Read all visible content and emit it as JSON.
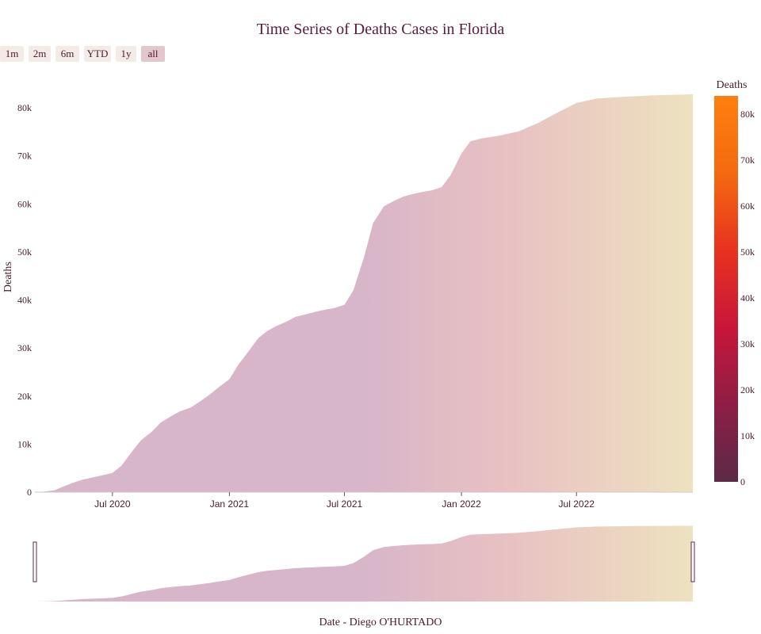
{
  "title": "Time Series of Deaths Cases in Florida",
  "range_buttons": [
    {
      "label": "1m",
      "active": false
    },
    {
      "label": "2m",
      "active": false
    },
    {
      "label": "6m",
      "active": false
    },
    {
      "label": "YTD",
      "active": false
    },
    {
      "label": "1y",
      "active": false
    },
    {
      "label": "all",
      "active": true
    }
  ],
  "colors": {
    "area_start": "#d8b6c9",
    "area_mid": "#e8c1c2",
    "area_end": "#ede2bf",
    "colorscale": [
      "#5c2a46",
      "#8e1e45",
      "#c8163a",
      "#e8321f",
      "#f46a10",
      "#fe7f0f"
    ]
  },
  "chart_data": {
    "type": "area",
    "xlabel": "Date - Diego O'HURTADO",
    "ylabel": "Deaths",
    "colorbar_title": "Deaths",
    "x": [
      "2020-03-01",
      "2020-03-15",
      "2020-04-01",
      "2020-04-15",
      "2020-05-01",
      "2020-05-15",
      "2020-06-01",
      "2020-06-15",
      "2020-07-01",
      "2020-07-15",
      "2020-08-01",
      "2020-08-15",
      "2020-09-01",
      "2020-09-15",
      "2020-10-01",
      "2020-10-15",
      "2020-11-01",
      "2020-11-15",
      "2020-12-01",
      "2020-12-15",
      "2021-01-01",
      "2021-01-15",
      "2021-02-01",
      "2021-02-15",
      "2021-03-01",
      "2021-03-15",
      "2021-04-01",
      "2021-04-15",
      "2021-05-01",
      "2021-05-15",
      "2021-06-01",
      "2021-06-15",
      "2021-07-01",
      "2021-07-15",
      "2021-08-01",
      "2021-08-15",
      "2021-09-01",
      "2021-09-15",
      "2021-10-01",
      "2021-10-15",
      "2021-11-01",
      "2021-11-15",
      "2021-12-01",
      "2021-12-15",
      "2022-01-01",
      "2022-01-15",
      "2022-02-01",
      "2022-02-15",
      "2022-03-01",
      "2022-03-15",
      "2022-04-01",
      "2022-05-01",
      "2022-06-01",
      "2022-07-01",
      "2022-08-01",
      "2022-09-01",
      "2022-10-01",
      "2022-11-01",
      "2022-12-01",
      "2022-12-31"
    ],
    "y": [
      0,
      100,
      400,
      1200,
      2000,
      2600,
      3100,
      3500,
      4000,
      5500,
      8500,
      10800,
      12600,
      14500,
      15800,
      16800,
      17600,
      18800,
      20300,
      21800,
      23500,
      26500,
      29500,
      32000,
      33500,
      34500,
      35500,
      36500,
      37000,
      37500,
      38000,
      38300,
      39000,
      42000,
      49000,
      56000,
      59500,
      60500,
      61500,
      62000,
      62500,
      62800,
      63500,
      66000,
      70500,
      73000,
      73600,
      73900,
      74200,
      74600,
      75100,
      76800,
      79000,
      81000,
      81900,
      82200,
      82400,
      82600,
      82700,
      82800
    ],
    "x_ticks": [
      "Jul 2020",
      "Jan 2021",
      "Jul 2021",
      "Jan 2022",
      "Jul 2022"
    ],
    "x_tick_dates": [
      "2020-07-01",
      "2021-01-01",
      "2021-07-01",
      "2022-01-01",
      "2022-07-01"
    ],
    "y_ticks": [
      "0",
      "10k",
      "20k",
      "30k",
      "40k",
      "50k",
      "60k",
      "70k",
      "80k"
    ],
    "y_tick_values": [
      0,
      10000,
      20000,
      30000,
      40000,
      50000,
      60000,
      70000,
      80000
    ],
    "colorbar_ticks": [
      "0",
      "10k",
      "20k",
      "30k",
      "40k",
      "50k",
      "60k",
      "70k",
      "80k"
    ],
    "ylim": [
      0,
      84000
    ],
    "x_range": [
      "2020-03-01",
      "2022-12-31"
    ],
    "colorbar_range": [
      0,
      84000
    ],
    "rangeslider": true
  }
}
